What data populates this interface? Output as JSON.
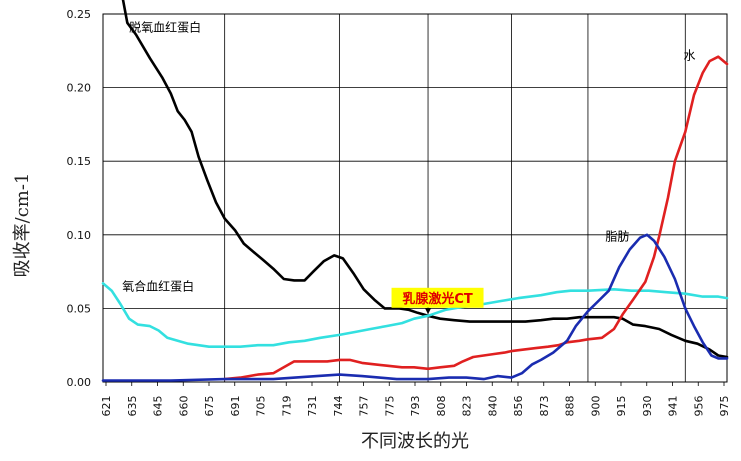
{
  "chart_data": {
    "type": "line",
    "xlabel": "不同波长的光",
    "ylabel": "吸收率/cm-1",
    "x_tick_labels": [
      "621",
      "635",
      "645",
      "660",
      "675",
      "691",
      "705",
      "719",
      "731",
      "744",
      "757",
      "775",
      "793",
      "808",
      "823",
      "840",
      "856",
      "873",
      "888",
      "900",
      "915",
      "930",
      "941",
      "956",
      "975"
    ],
    "xlim": [
      621,
      980
    ],
    "ylim": [
      0,
      0.25
    ],
    "y_ticks": [
      {
        "value": 0,
        "label": "0.00"
      },
      {
        "value": 0.05,
        "label": "0.05"
      },
      {
        "value": 0.1,
        "label": "0.10"
      },
      {
        "value": 0.15,
        "label": "0.15"
      },
      {
        "value": 0.2,
        "label": "0.20"
      },
      {
        "value": 0.25,
        "label": "0.25"
      }
    ],
    "x_grid": [
      621,
      691,
      757,
      808,
      856,
      900,
      956
    ],
    "grid": true,
    "series": [
      {
        "label": "脱氧血红蛋白",
        "label_at": [
          636,
          0.238
        ],
        "color": "#000000",
        "points": [
          [
            632,
            0.263
          ],
          [
            635,
            0.244
          ],
          [
            640,
            0.236
          ],
          [
            648,
            0.22
          ],
          [
            655,
            0.207
          ],
          [
            660,
            0.196
          ],
          [
            664,
            0.184
          ],
          [
            668,
            0.178
          ],
          [
            672,
            0.17
          ],
          [
            676,
            0.153
          ],
          [
            681,
            0.137
          ],
          [
            686,
            0.122
          ],
          [
            691,
            0.111
          ],
          [
            697,
            0.103
          ],
          [
            702,
            0.094
          ],
          [
            708,
            0.088
          ],
          [
            713,
            0.083
          ],
          [
            719,
            0.077
          ],
          [
            725,
            0.07
          ],
          [
            731,
            0.069
          ],
          [
            737,
            0.069
          ],
          [
            742,
            0.075
          ],
          [
            748,
            0.082
          ],
          [
            754,
            0.086
          ],
          [
            759,
            0.084
          ],
          [
            765,
            0.074
          ],
          [
            771,
            0.063
          ],
          [
            777,
            0.056
          ],
          [
            783,
            0.05
          ],
          [
            791,
            0.05
          ],
          [
            797,
            0.049
          ],
          [
            802,
            0.047
          ],
          [
            808,
            0.045
          ],
          [
            815,
            0.043
          ],
          [
            823,
            0.042
          ],
          [
            832,
            0.041
          ],
          [
            840,
            0.041
          ],
          [
            848,
            0.041
          ],
          [
            856,
            0.041
          ],
          [
            864,
            0.041
          ],
          [
            873,
            0.042
          ],
          [
            880,
            0.043
          ],
          [
            888,
            0.043
          ],
          [
            895,
            0.044
          ],
          [
            905,
            0.044
          ],
          [
            915,
            0.044
          ],
          [
            920,
            0.043
          ],
          [
            926,
            0.039
          ],
          [
            933,
            0.038
          ],
          [
            941,
            0.036
          ],
          [
            948,
            0.032
          ],
          [
            956,
            0.028
          ],
          [
            963,
            0.026
          ],
          [
            970,
            0.022
          ],
          [
            975,
            0.018
          ],
          [
            980,
            0.017
          ]
        ]
      },
      {
        "label": "氧合血红蛋白",
        "label_at": [
          632,
          0.062
        ],
        "color": "#33e0e0",
        "points": [
          [
            621,
            0.067
          ],
          [
            626,
            0.062
          ],
          [
            631,
            0.053
          ],
          [
            636,
            0.043
          ],
          [
            641,
            0.039
          ],
          [
            648,
            0.038
          ],
          [
            653,
            0.035
          ],
          [
            658,
            0.03
          ],
          [
            664,
            0.028
          ],
          [
            670,
            0.026
          ],
          [
            676,
            0.025
          ],
          [
            682,
            0.024
          ],
          [
            691,
            0.024
          ],
          [
            700,
            0.024
          ],
          [
            710,
            0.025
          ],
          [
            719,
            0.025
          ],
          [
            728,
            0.027
          ],
          [
            737,
            0.028
          ],
          [
            746,
            0.03
          ],
          [
            757,
            0.032
          ],
          [
            766,
            0.034
          ],
          [
            775,
            0.036
          ],
          [
            784,
            0.038
          ],
          [
            793,
            0.04
          ],
          [
            800,
            0.043
          ],
          [
            808,
            0.045
          ],
          [
            818,
            0.049
          ],
          [
            828,
            0.051
          ],
          [
            840,
            0.053
          ],
          [
            850,
            0.055
          ],
          [
            860,
            0.057
          ],
          [
            873,
            0.059
          ],
          [
            882,
            0.061
          ],
          [
            890,
            0.062
          ],
          [
            900,
            0.062
          ],
          [
            915,
            0.063
          ],
          [
            925,
            0.062
          ],
          [
            935,
            0.062
          ],
          [
            945,
            0.061
          ],
          [
            956,
            0.06
          ],
          [
            966,
            0.058
          ],
          [
            975,
            0.058
          ],
          [
            980,
            0.057
          ]
        ]
      },
      {
        "label": "水",
        "label_at": [
          955,
          0.219
        ],
        "color": "#e02020",
        "points": [
          [
            691,
            0.002
          ],
          [
            700,
            0.003
          ],
          [
            710,
            0.005
          ],
          [
            719,
            0.006
          ],
          [
            725,
            0.01
          ],
          [
            731,
            0.014
          ],
          [
            740,
            0.014
          ],
          [
            750,
            0.014
          ],
          [
            757,
            0.015
          ],
          [
            763,
            0.015
          ],
          [
            770,
            0.013
          ],
          [
            777,
            0.012
          ],
          [
            785,
            0.011
          ],
          [
            793,
            0.01
          ],
          [
            800,
            0.01
          ],
          [
            808,
            0.009
          ],
          [
            815,
            0.01
          ],
          [
            823,
            0.011
          ],
          [
            828,
            0.014
          ],
          [
            834,
            0.017
          ],
          [
            840,
            0.018
          ],
          [
            846,
            0.019
          ],
          [
            852,
            0.02
          ],
          [
            856,
            0.021
          ],
          [
            863,
            0.022
          ],
          [
            870,
            0.023
          ],
          [
            877,
            0.024
          ],
          [
            883,
            0.025
          ],
          [
            888,
            0.027
          ],
          [
            895,
            0.028
          ],
          [
            900,
            0.029
          ],
          [
            908,
            0.03
          ],
          [
            915,
            0.036
          ],
          [
            920,
            0.046
          ],
          [
            926,
            0.056
          ],
          [
            933,
            0.068
          ],
          [
            938,
            0.085
          ],
          [
            941,
            0.099
          ],
          [
            946,
            0.125
          ],
          [
            950,
            0.15
          ],
          [
            956,
            0.17
          ],
          [
            961,
            0.195
          ],
          [
            966,
            0.21
          ],
          [
            970,
            0.218
          ],
          [
            975,
            0.221
          ],
          [
            980,
            0.216
          ]
        ]
      },
      {
        "label": "脂肪",
        "label_at": [
          910,
          0.096
        ],
        "color": "#1a2cb0",
        "points": [
          [
            621,
            0.001
          ],
          [
            660,
            0.001
          ],
          [
            691,
            0.002
          ],
          [
            719,
            0.002
          ],
          [
            744,
            0.004
          ],
          [
            757,
            0.005
          ],
          [
            770,
            0.004
          ],
          [
            780,
            0.003
          ],
          [
            790,
            0.002
          ],
          [
            800,
            0.002
          ],
          [
            808,
            0.002
          ],
          [
            820,
            0.003
          ],
          [
            830,
            0.003
          ],
          [
            840,
            0.002
          ],
          [
            848,
            0.004
          ],
          [
            856,
            0.003
          ],
          [
            862,
            0.006
          ],
          [
            868,
            0.012
          ],
          [
            873,
            0.015
          ],
          [
            880,
            0.02
          ],
          [
            888,
            0.028
          ],
          [
            893,
            0.038
          ],
          [
            900,
            0.048
          ],
          [
            906,
            0.055
          ],
          [
            912,
            0.062
          ],
          [
            918,
            0.078
          ],
          [
            924,
            0.09
          ],
          [
            930,
            0.098
          ],
          [
            934,
            0.1
          ],
          [
            938,
            0.096
          ],
          [
            944,
            0.085
          ],
          [
            950,
            0.07
          ],
          [
            956,
            0.05
          ],
          [
            961,
            0.038
          ],
          [
            966,
            0.027
          ],
          [
            971,
            0.018
          ],
          [
            975,
            0.016
          ],
          [
            980,
            0.016
          ]
        ]
      }
    ],
    "callout": {
      "text": "乳腺激光CT",
      "box_at": [
        787,
        0.064
      ],
      "arrow_to": [
        808,
        0.046
      ],
      "text_color": "#e00000",
      "background": "#ffff00"
    }
  }
}
